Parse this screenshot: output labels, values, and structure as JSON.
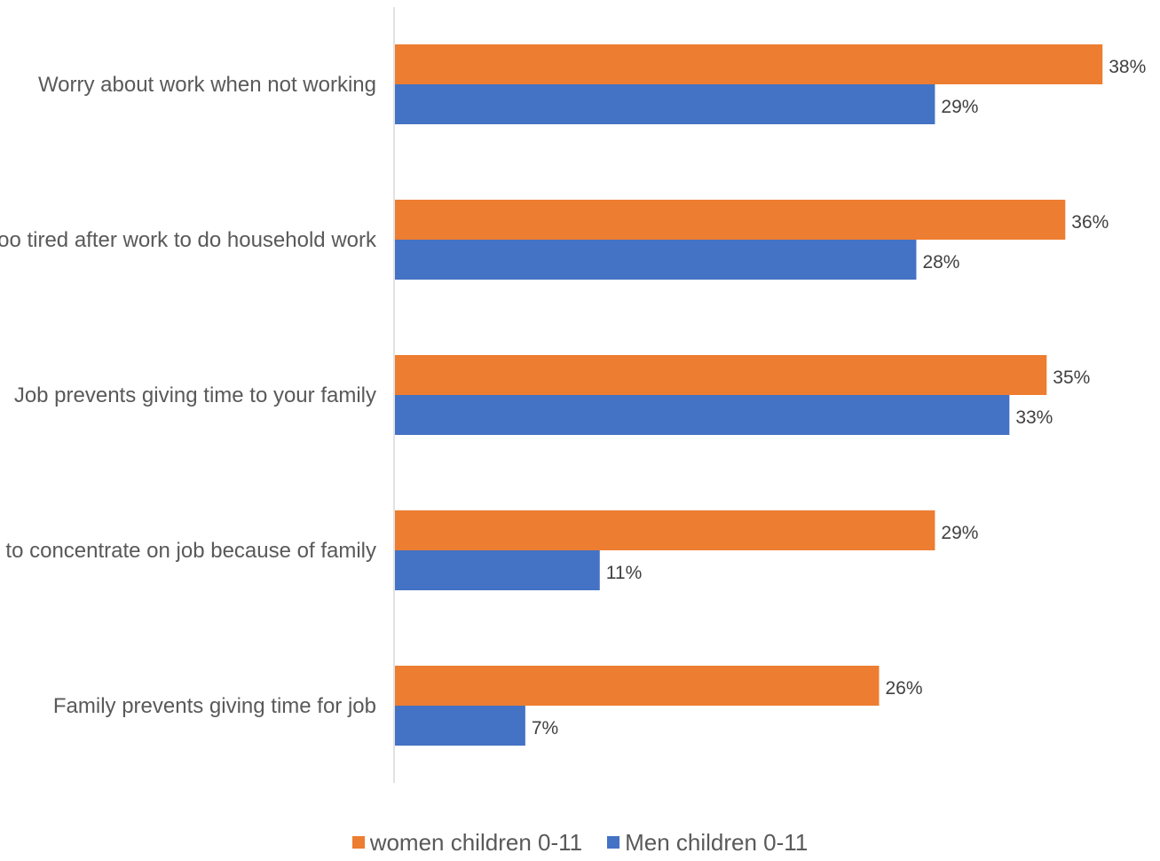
{
  "chart_data": {
    "type": "bar",
    "orientation": "horizontal",
    "categories": [
      "Worry about work when not working",
      "Too tired after work to do household work",
      "Job prevents giving time to your family",
      "Hard to concentrate on job because of family",
      "Family prevents giving time for job"
    ],
    "series": [
      {
        "name": "women children 0-11",
        "color": "#ED7D31",
        "values": [
          38,
          36,
          35,
          29,
          26
        ],
        "labels": [
          "38%",
          "36%",
          "35%",
          "29%",
          "26%"
        ]
      },
      {
        "name": "Men children 0-11",
        "color": "#4472C4",
        "values": [
          29,
          28,
          33,
          11,
          7
        ],
        "labels": [
          "29%",
          "28%",
          "33%",
          "11%",
          "7%"
        ]
      }
    ],
    "xlim": [
      0,
      40
    ],
    "grid": false,
    "legend_position": "bottom",
    "title": "",
    "xlabel": "",
    "ylabel": ""
  }
}
